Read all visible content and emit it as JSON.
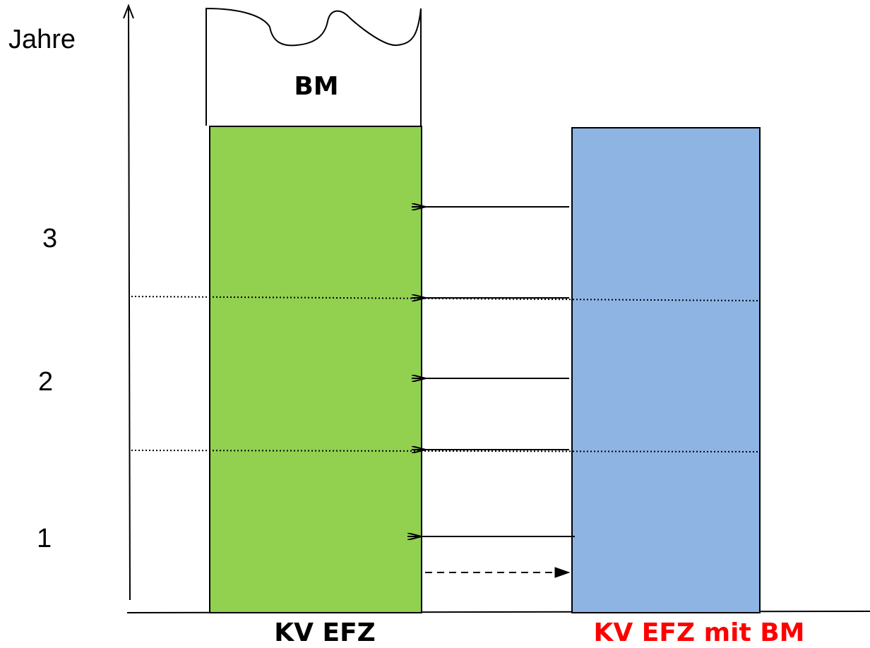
{
  "y_axis": {
    "title": "Jahre",
    "ticks": [
      "3",
      "2",
      "1"
    ]
  },
  "bars": {
    "left": {
      "label": "KV EFZ",
      "fill": "#92d050",
      "label_color": "#000000"
    },
    "right": {
      "label": "KV EFZ mit BM",
      "fill": "#8eb4e3",
      "label_color": "#ff0000"
    }
  },
  "bm_block": {
    "label": "BM"
  },
  "colors": {
    "line": "#000000",
    "background": "#ffffff"
  },
  "arrows": {
    "right_to_left_count": 5,
    "dashed_left_to_right_count": 1
  }
}
